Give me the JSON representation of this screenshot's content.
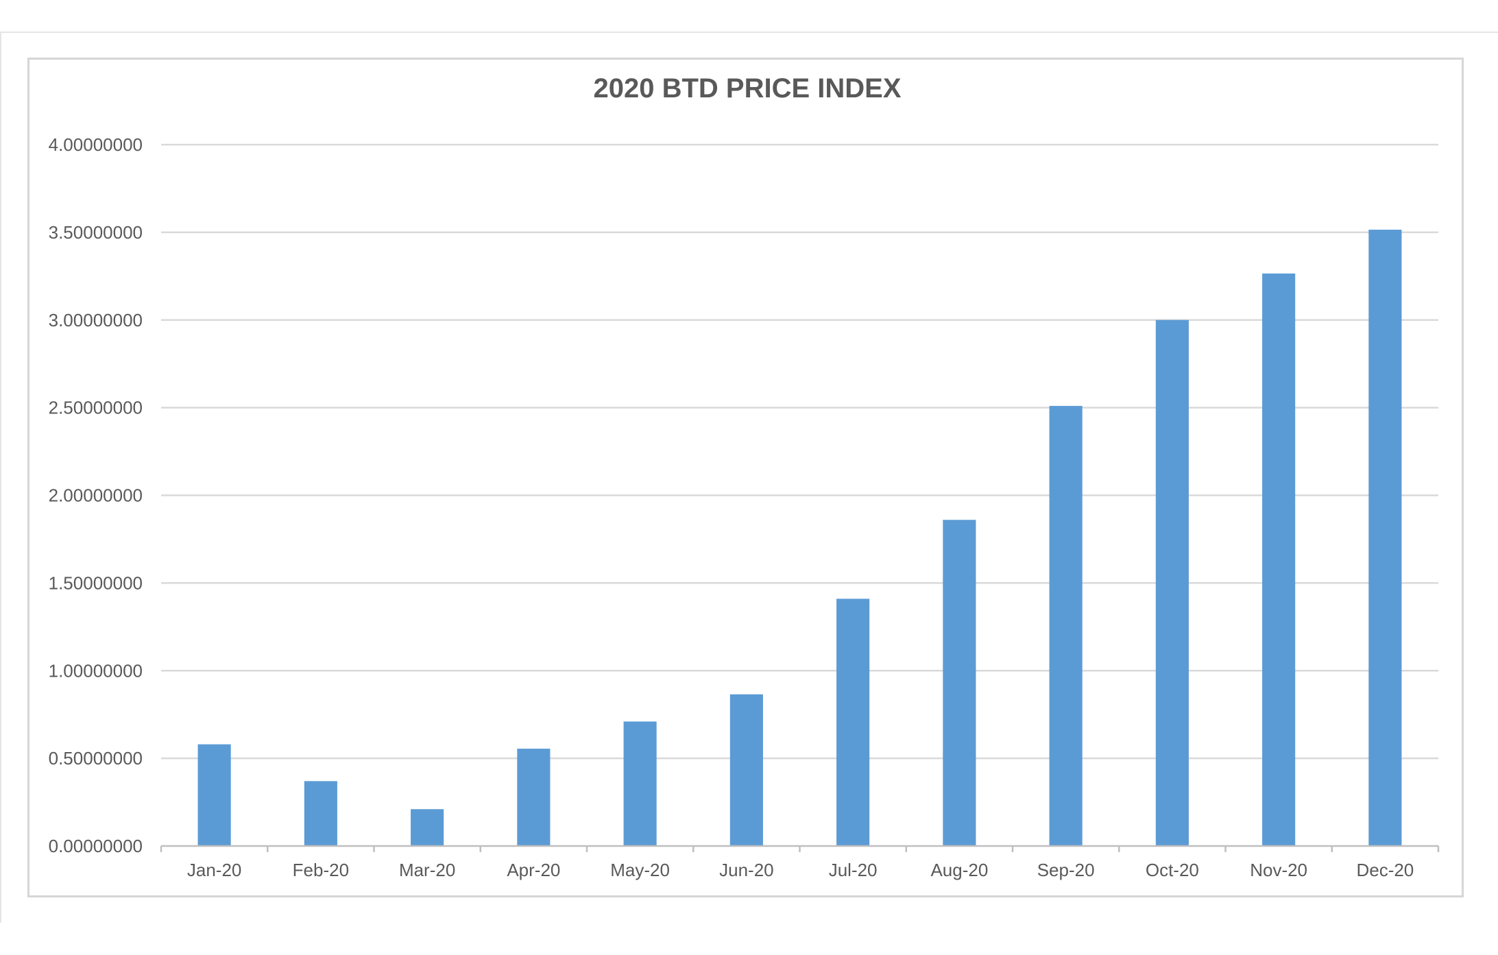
{
  "chart_data": {
    "type": "bar",
    "title": "2020 BTD PRICE INDEX",
    "xlabel": "",
    "ylabel": "",
    "categories": [
      "Jan-20",
      "Feb-20",
      "Mar-20",
      "Apr-20",
      "May-20",
      "Jun-20",
      "Jul-20",
      "Aug-20",
      "Sep-20",
      "Oct-20",
      "Nov-20",
      "Dec-20"
    ],
    "values": [
      0.58,
      0.37,
      0.21,
      0.555,
      0.71,
      0.865,
      1.41,
      1.86,
      2.51,
      3.0,
      3.265,
      3.515
    ],
    "ylim": [
      0,
      4
    ],
    "yticks": [
      "0.00000000",
      "0.50000000",
      "1.00000000",
      "1.50000000",
      "2.00000000",
      "2.50000000",
      "3.00000000",
      "3.50000000",
      "4.00000000"
    ],
    "ytick_step": 0.5,
    "grid": true,
    "legend": "none",
    "bar_color": "#5b9bd5",
    "grid_color": "#d9d9d9",
    "text_color": "#595959"
  }
}
